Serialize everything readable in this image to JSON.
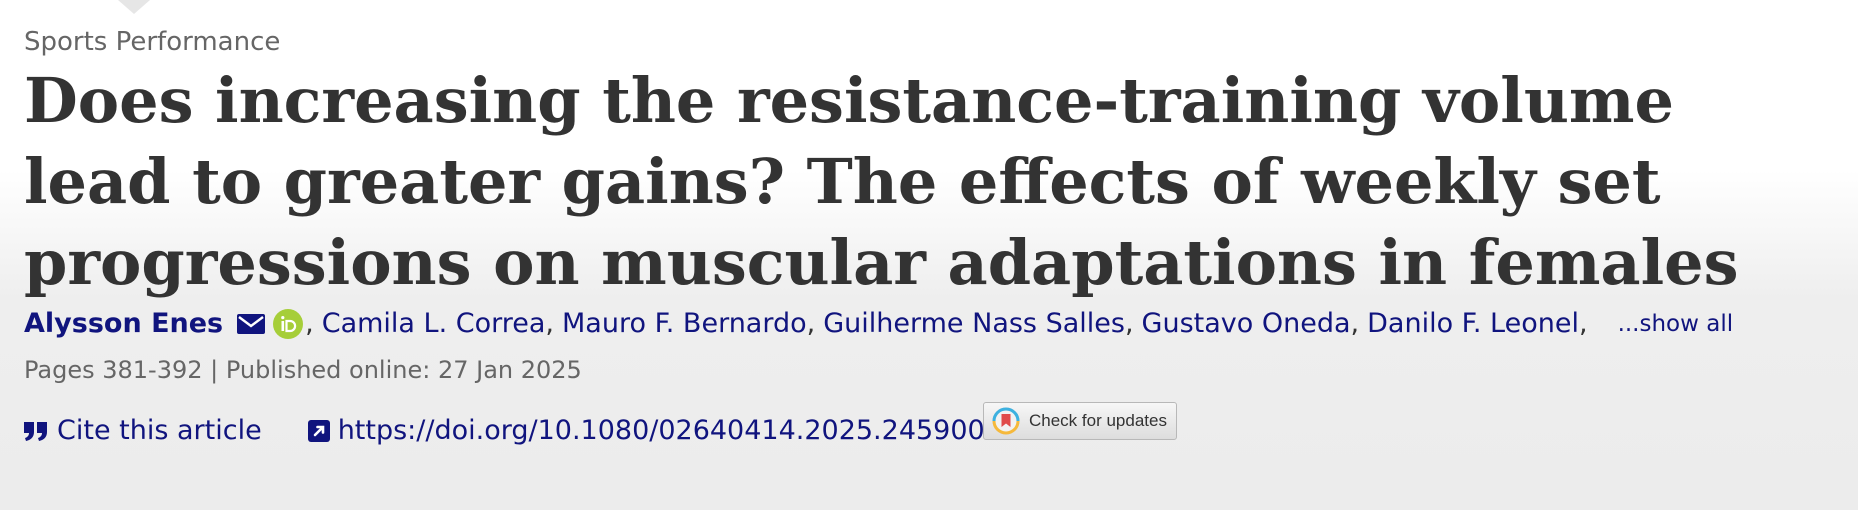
{
  "section": "Sports Performance",
  "title": "Does increasing the resistance-training volume lead to greater gains? The effects of weekly set progressions on muscular adaptations in females",
  "authors": {
    "primary": "Alysson Enes",
    "others": [
      "Camila L. Correa",
      "Mauro F. Bernardo",
      "Guilherme Nass Salles",
      "Gustavo Oneda",
      "Danilo F. Leonel"
    ],
    "show_all": "...show all"
  },
  "meta": "Pages 381-392 | Published online: 27 Jan 2025",
  "actions": {
    "cite_label": "Cite this article",
    "doi_url": "https://doi.org/10.1080/02640414.2025.2459003",
    "check_updates_label": "Check for updates"
  },
  "colors": {
    "link": "#10147e",
    "title": "#333333",
    "muted": "#666666",
    "orcid": "#a6ce39"
  },
  "icons": {
    "email": "envelope-icon",
    "orcid": "orcid-icon",
    "cite": "quote-icon",
    "doi": "external-link-icon",
    "crossmark": "crossmark-icon"
  }
}
